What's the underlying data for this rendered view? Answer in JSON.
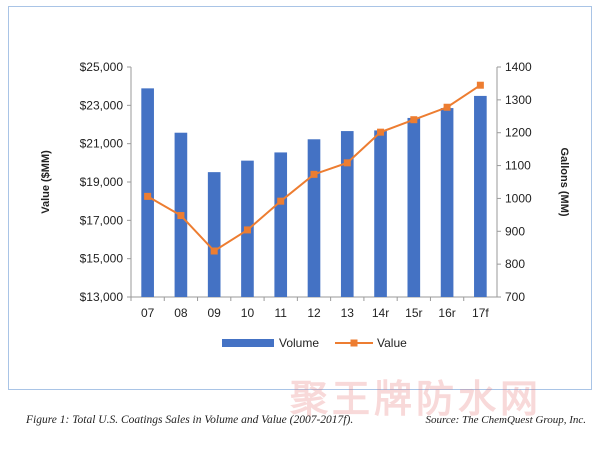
{
  "chart_data": {
    "type": "bar+line",
    "categories": [
      "07",
      "08",
      "09",
      "10",
      "11",
      "12",
      "13",
      "14r",
      "15r",
      "16r",
      "17f"
    ],
    "series": [
      {
        "name": "Volume",
        "kind": "bar",
        "axis": "right",
        "color": "#4472c4",
        "values": [
          1335,
          1200,
          1080,
          1115,
          1140,
          1180,
          1205,
          1207,
          1245,
          1275,
          1312
        ]
      },
      {
        "name": "Value",
        "kind": "line",
        "axis": "left",
        "color": "#ed7d31",
        "values": [
          18250,
          17250,
          15400,
          16500,
          18000,
          19400,
          20000,
          21600,
          22250,
          22900,
          24050
        ]
      }
    ],
    "y_left": {
      "label": "Value ($MM)",
      "range": [
        13000,
        25000
      ],
      "ticks": [
        "$13,000",
        "$15,000",
        "$17,000",
        "$19,000",
        "$21,000",
        "$23,000",
        "$25,000"
      ],
      "tick_values": [
        13000,
        15000,
        17000,
        19000,
        21000,
        23000,
        25000
      ]
    },
    "y_right": {
      "label": "Gallons (MM)",
      "range": [
        700,
        1400
      ],
      "ticks": [
        "700",
        "800",
        "900",
        "1000",
        "1100",
        "1200",
        "1300",
        "1400"
      ],
      "tick_values": [
        700,
        800,
        900,
        1000,
        1100,
        1200,
        1300,
        1400
      ]
    },
    "grid": false,
    "legend": {
      "position": "bottom-center",
      "items": [
        "Volume",
        "Value"
      ]
    }
  },
  "caption": {
    "text": "Figure 1: Total U.S. Coatings Sales in Volume and Value (2007-2017f).",
    "source": "Source: The ChemQuest Group, Inc."
  },
  "watermark": "聚王牌防水网"
}
